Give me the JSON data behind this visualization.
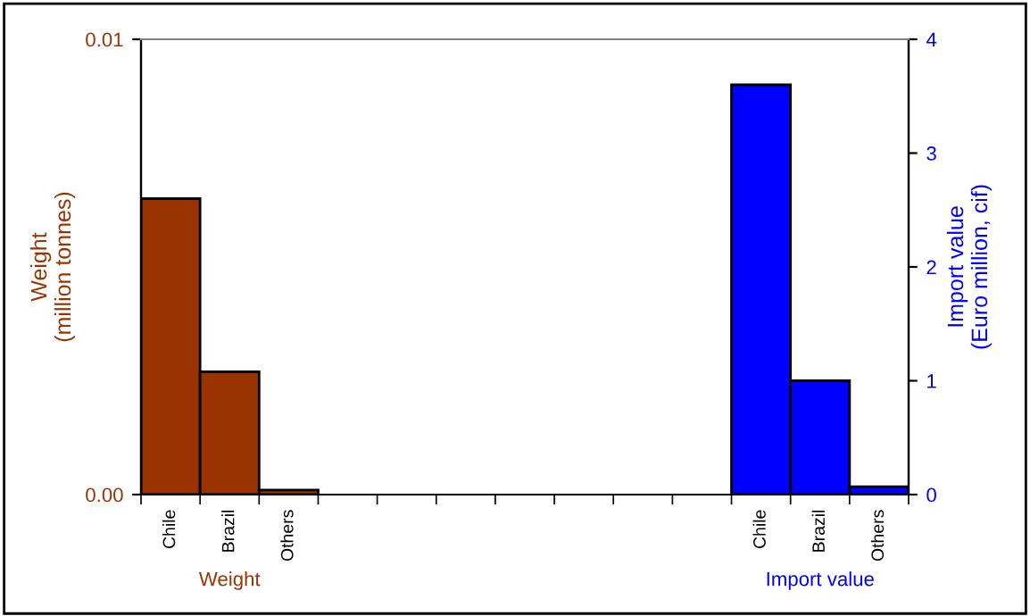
{
  "chart_data": {
    "type": "bar",
    "ylabel": "Weight\n(million tonnes)",
    "y2label": "Import value\n(Euro million, cif)",
    "categories": [
      "Chile",
      "Brazil",
      "Others",
      null,
      null,
      null,
      null,
      null,
      null,
      null,
      "Chile",
      "Brazil",
      "Others"
    ],
    "series": [
      {
        "color": "#993300",
        "values": [
          0.0065,
          0.0027,
          0.0001,
          null,
          null,
          null,
          null,
          null,
          null,
          null,
          null,
          null,
          null
        ]
      },
      {
        "color": "#0000ff",
        "axis": "y2",
        "values": [
          null,
          null,
          null,
          null,
          null,
          null,
          null,
          null,
          null,
          null,
          3.6,
          1.0,
          0.07
        ]
      }
    ],
    "ylim": [
      0,
      0.01
    ],
    "yticks": [
      {
        "value": 0,
        "label": "0.00"
      },
      {
        "value": 0.01,
        "label": "0.01"
      }
    ],
    "y2lim": [
      0,
      4
    ],
    "y2ticks": [
      0,
      1,
      2,
      3,
      4
    ],
    "annotations": [
      "Weight",
      "Import value"
    ],
    "grid": false,
    "legend": false
  }
}
